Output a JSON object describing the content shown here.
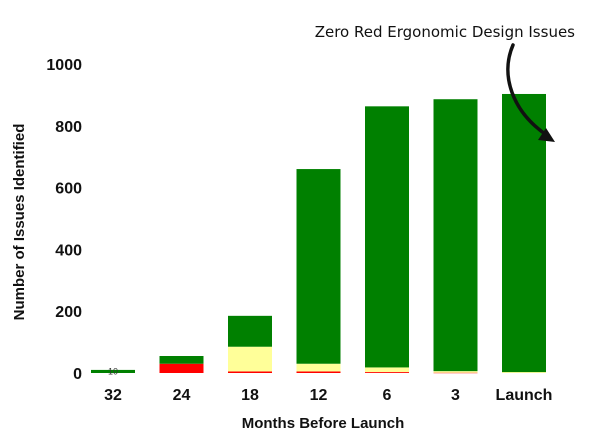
{
  "chart_data": {
    "type": "bar",
    "stacked": true,
    "categories": [
      "32",
      "24",
      "18",
      "12",
      "6",
      "3",
      "Launch"
    ],
    "series": [
      {
        "color": "#ff0000",
        "values": [
          0,
          30,
          5,
          5,
          3,
          1,
          0
        ]
      },
      {
        "color": "#ffff99",
        "values": [
          0,
          0,
          80,
          25,
          15,
          5,
          3
        ]
      },
      {
        "color": "#008000",
        "values": [
          10,
          25,
          100,
          630,
          845,
          880,
          900
        ]
      }
    ],
    "data_labels": [
      {
        "category": "32",
        "text": "10"
      }
    ],
    "xlabel": "Months Before Launch",
    "ylabel": "Number of Issues Identified",
    "yticks": [
      0,
      200,
      400,
      600,
      800,
      1000
    ],
    "ylim": [
      0,
      1000
    ],
    "grid": false,
    "annotation": {
      "text": "Zero Red Ergonomic Design Issues",
      "target_category": "Launch"
    }
  }
}
